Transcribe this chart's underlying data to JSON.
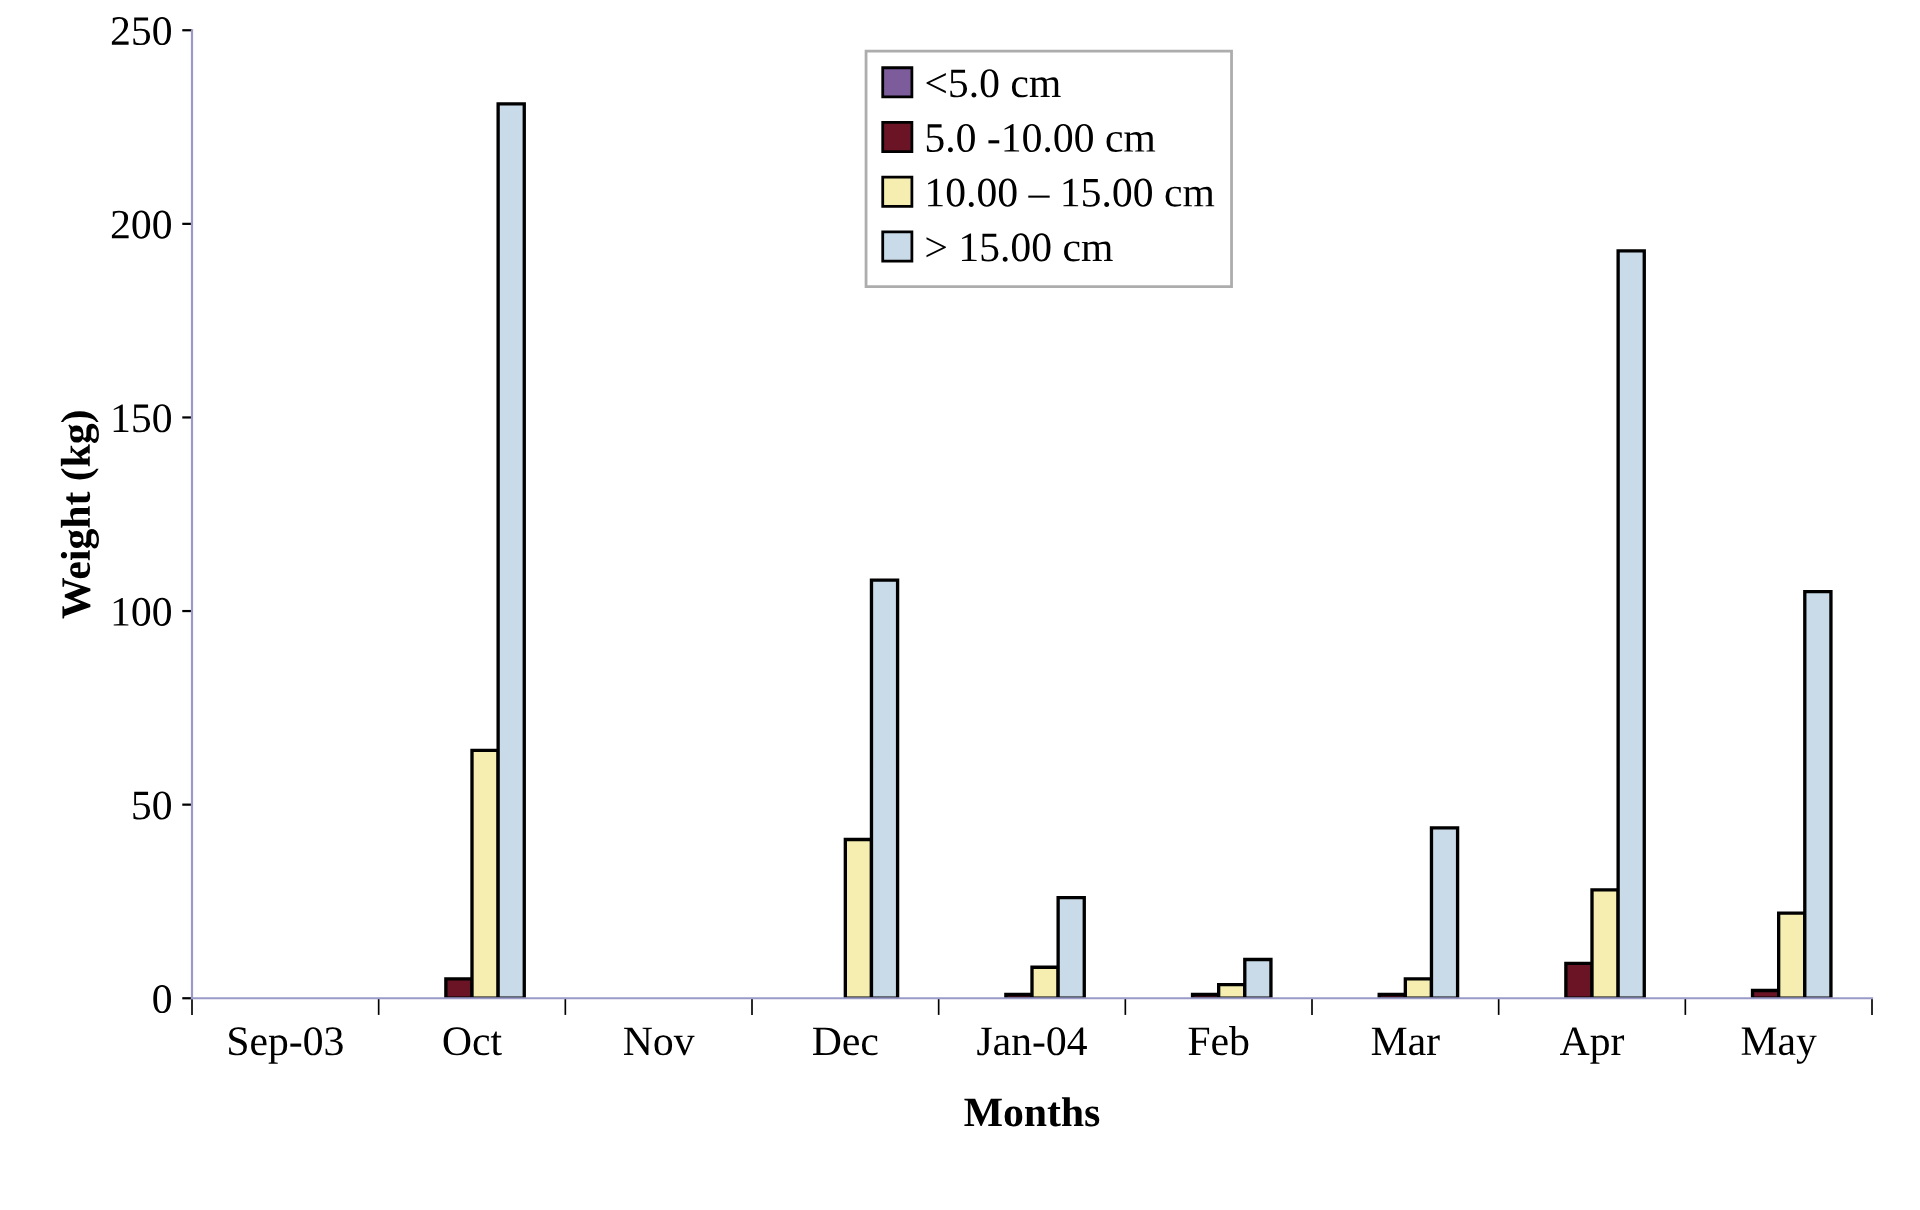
{
  "chart_data": {
    "type": "bar",
    "xlabel": "Months",
    "ylabel": "Weight (kg)",
    "categories": [
      "Sep-03",
      "Oct",
      "Nov",
      "Dec",
      "Jan-04",
      "Feb",
      "Mar",
      "Apr",
      "May"
    ],
    "series": [
      {
        "name": "<5.0 cm",
        "color": "#7d5c9c",
        "values": [
          null,
          null,
          null,
          null,
          null,
          null,
          null,
          null,
          null
        ]
      },
      {
        "name": "5.0 -10.00 cm",
        "color": "#6b1426",
        "values": [
          null,
          5,
          null,
          null,
          1,
          1,
          1,
          9,
          2
        ]
      },
      {
        "name": "10.00 – 15.00 cm",
        "color": "#f5eeb0",
        "values": [
          null,
          64,
          null,
          41,
          8,
          3.5,
          5,
          28,
          22
        ]
      },
      {
        "name": "> 15.00 cm",
        "color": "#c9dbe8",
        "values": [
          null,
          231,
          null,
          108,
          26,
          10,
          44,
          193,
          105
        ]
      }
    ],
    "ylim": [
      0,
      250
    ],
    "yticks": [
      0,
      50,
      100,
      150,
      200,
      250
    ],
    "grid": false,
    "legend": "top"
  }
}
